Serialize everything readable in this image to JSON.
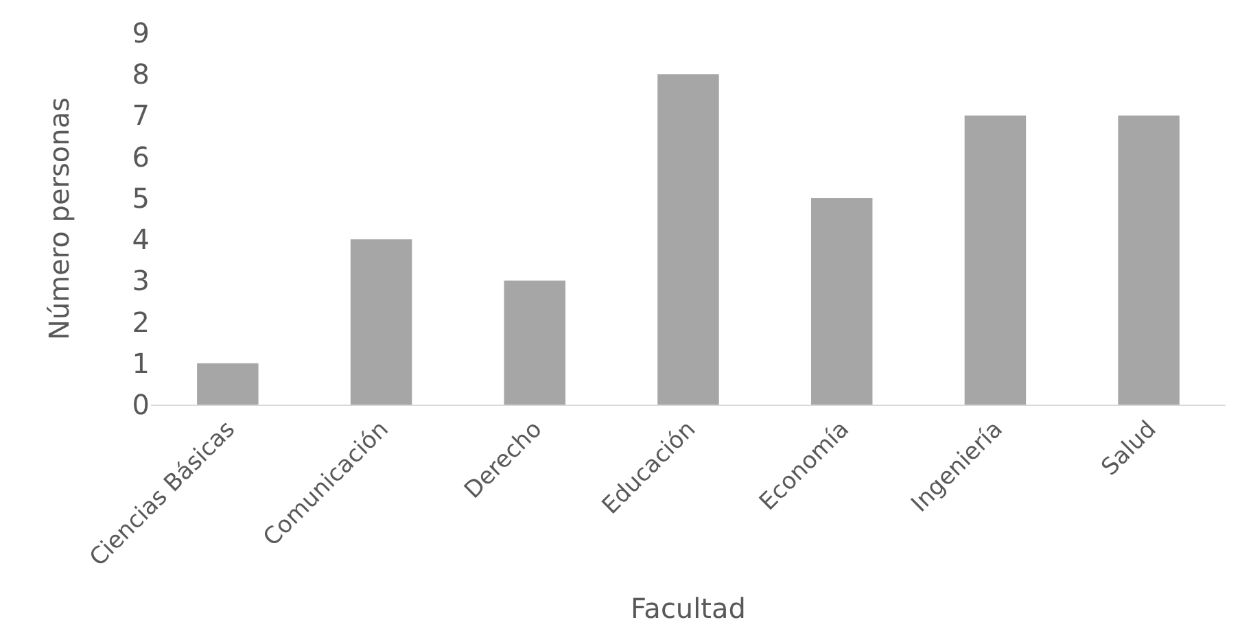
{
  "chart_data": {
    "type": "bar",
    "xlabel": "Facultad",
    "ylabel": "Número personas",
    "categories": [
      "Ciencias Básicas",
      "Comunicación",
      "Derecho",
      "Educación",
      "Economía",
      "Ingeniería",
      "Salud"
    ],
    "values": [
      1,
      4,
      3,
      8,
      5,
      7,
      7
    ],
    "color": "#a6a6a6",
    "ylim": [
      0,
      9
    ],
    "yticks": [
      0,
      1,
      2,
      3,
      4,
      5,
      6,
      7,
      8,
      9
    ],
    "grid": false
  }
}
